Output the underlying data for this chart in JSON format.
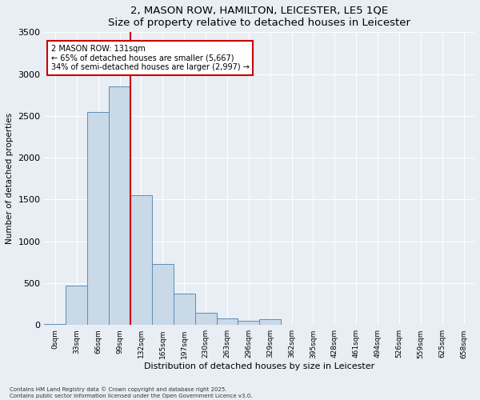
{
  "title": "2, MASON ROW, HAMILTON, LEICESTER, LE5 1QE",
  "subtitle": "Size of property relative to detached houses in Leicester",
  "xlabel": "Distribution of detached houses by size in Leicester",
  "ylabel": "Number of detached properties",
  "bar_values": [
    10,
    470,
    2550,
    2850,
    1550,
    730,
    380,
    150,
    80,
    50,
    70,
    0,
    0,
    0,
    0,
    0,
    0,
    0,
    0,
    0
  ],
  "bin_labels": [
    "0sqm",
    "33sqm",
    "66sqm",
    "99sqm",
    "132sqm",
    "165sqm",
    "197sqm",
    "230sqm",
    "263sqm",
    "296sqm",
    "329sqm",
    "362sqm",
    "395sqm",
    "428sqm",
    "461sqm",
    "494sqm",
    "526sqm",
    "559sqm",
    "625sqm",
    "658sqm"
  ],
  "bar_color": "#c9d9e8",
  "bar_edge_color": "#5b8db8",
  "vline_bin_index": 4,
  "vline_color": "#cc0000",
  "ylim": [
    0,
    3500
  ],
  "yticks": [
    0,
    500,
    1000,
    1500,
    2000,
    2500,
    3000,
    3500
  ],
  "annotation_text": "2 MASON ROW: 131sqm\n← 65% of detached houses are smaller (5,667)\n34% of semi-detached houses are larger (2,997) →",
  "annotation_box_color": "#cc0000",
  "footer_line1": "Contains HM Land Registry data © Crown copyright and database right 2025.",
  "footer_line2": "Contains public sector information licensed under the Open Government Licence v3.0.",
  "bg_color": "#e8eef4",
  "plot_bg_color": "#e8eef4"
}
